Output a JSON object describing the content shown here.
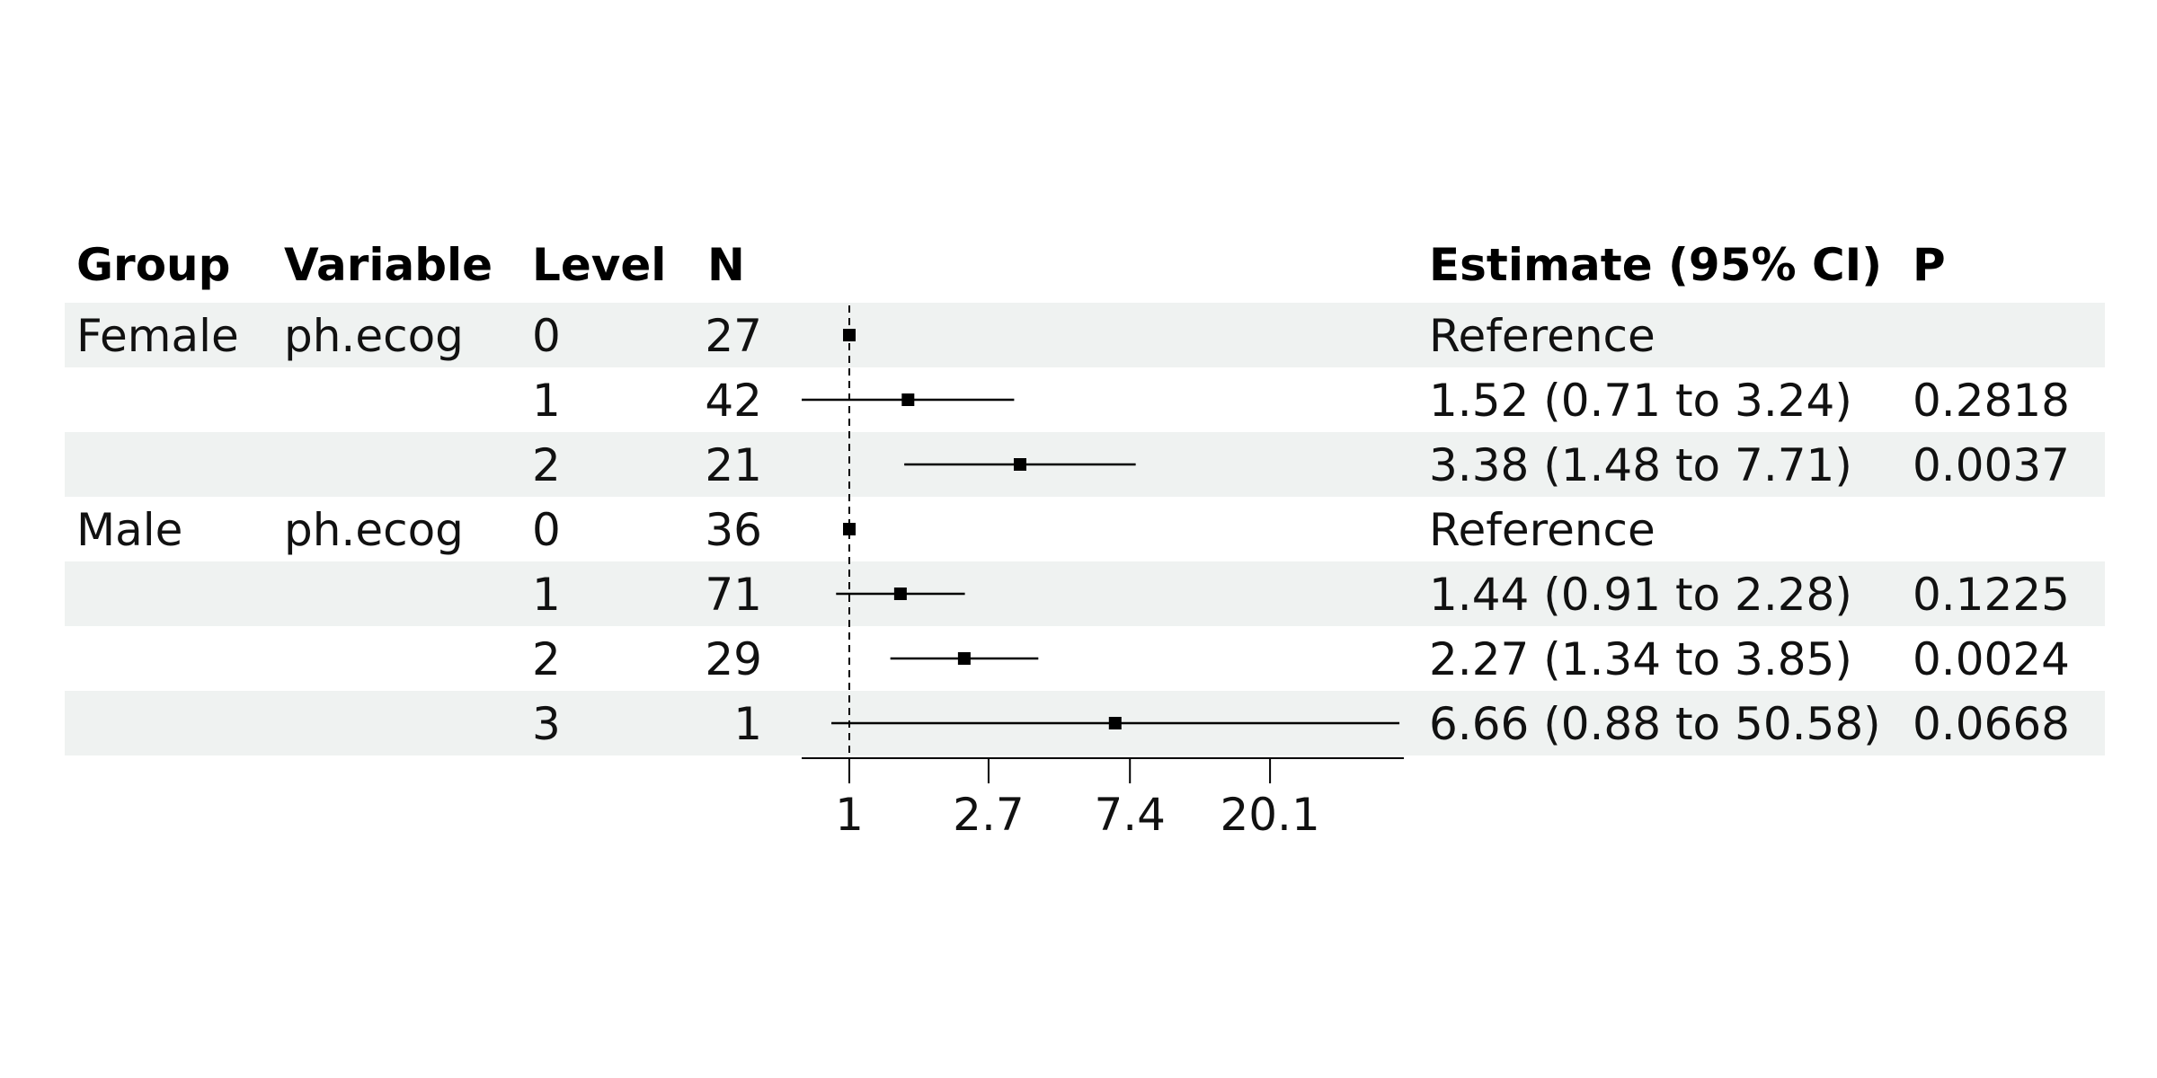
{
  "colors": {
    "band": "#eff2f1",
    "ink": "#000000"
  },
  "table": {
    "headers": {
      "group": "Group",
      "variable": "Variable",
      "level": "Level",
      "n": "N",
      "estimate": "Estimate (95% CI)",
      "p": "P"
    },
    "rows": [
      {
        "group": "Female",
        "variable": "ph.ecog",
        "level": "0",
        "n": "27",
        "estimate": "Reference",
        "p": ""
      },
      {
        "group": "",
        "variable": "",
        "level": "1",
        "n": "42",
        "estimate": "1.52 (0.71 to 3.24)",
        "p": "0.2818"
      },
      {
        "group": "",
        "variable": "",
        "level": "2",
        "n": "21",
        "estimate": "3.38 (1.48 to 7.71)",
        "p": "0.0037"
      },
      {
        "group": "Male",
        "variable": "ph.ecog",
        "level": "0",
        "n": "36",
        "estimate": "Reference",
        "p": ""
      },
      {
        "group": "",
        "variable": "",
        "level": "1",
        "n": "71",
        "estimate": "1.44 (0.91 to 2.28)",
        "p": "0.1225"
      },
      {
        "group": "",
        "variable": "",
        "level": "2",
        "n": "29",
        "estimate": "2.27 (1.34 to 3.85)",
        "p": "0.0024"
      },
      {
        "group": "",
        "variable": "",
        "level": "3",
        "n": "1",
        "estimate": "6.66 (0.88 to 50.58)",
        "p": "0.0668"
      }
    ]
  },
  "chart_data": {
    "type": "forest",
    "scale": "log",
    "reference_line": 1,
    "xlim": [
      0.71,
      50.58
    ],
    "x_ticks": [
      1,
      2.7,
      7.4,
      20.1
    ],
    "x_tick_labels": [
      "1",
      "2.7",
      "7.4",
      "20.1"
    ],
    "points": [
      {
        "estimate": 1,
        "lower": null,
        "upper": null
      },
      {
        "estimate": 1.52,
        "lower": 0.71,
        "upper": 3.24
      },
      {
        "estimate": 3.38,
        "lower": 1.48,
        "upper": 7.71
      },
      {
        "estimate": 1,
        "lower": null,
        "upper": null
      },
      {
        "estimate": 1.44,
        "lower": 0.91,
        "upper": 2.28
      },
      {
        "estimate": 2.27,
        "lower": 1.34,
        "upper": 3.85
      },
      {
        "estimate": 6.66,
        "lower": 0.88,
        "upper": 50.58
      }
    ]
  }
}
